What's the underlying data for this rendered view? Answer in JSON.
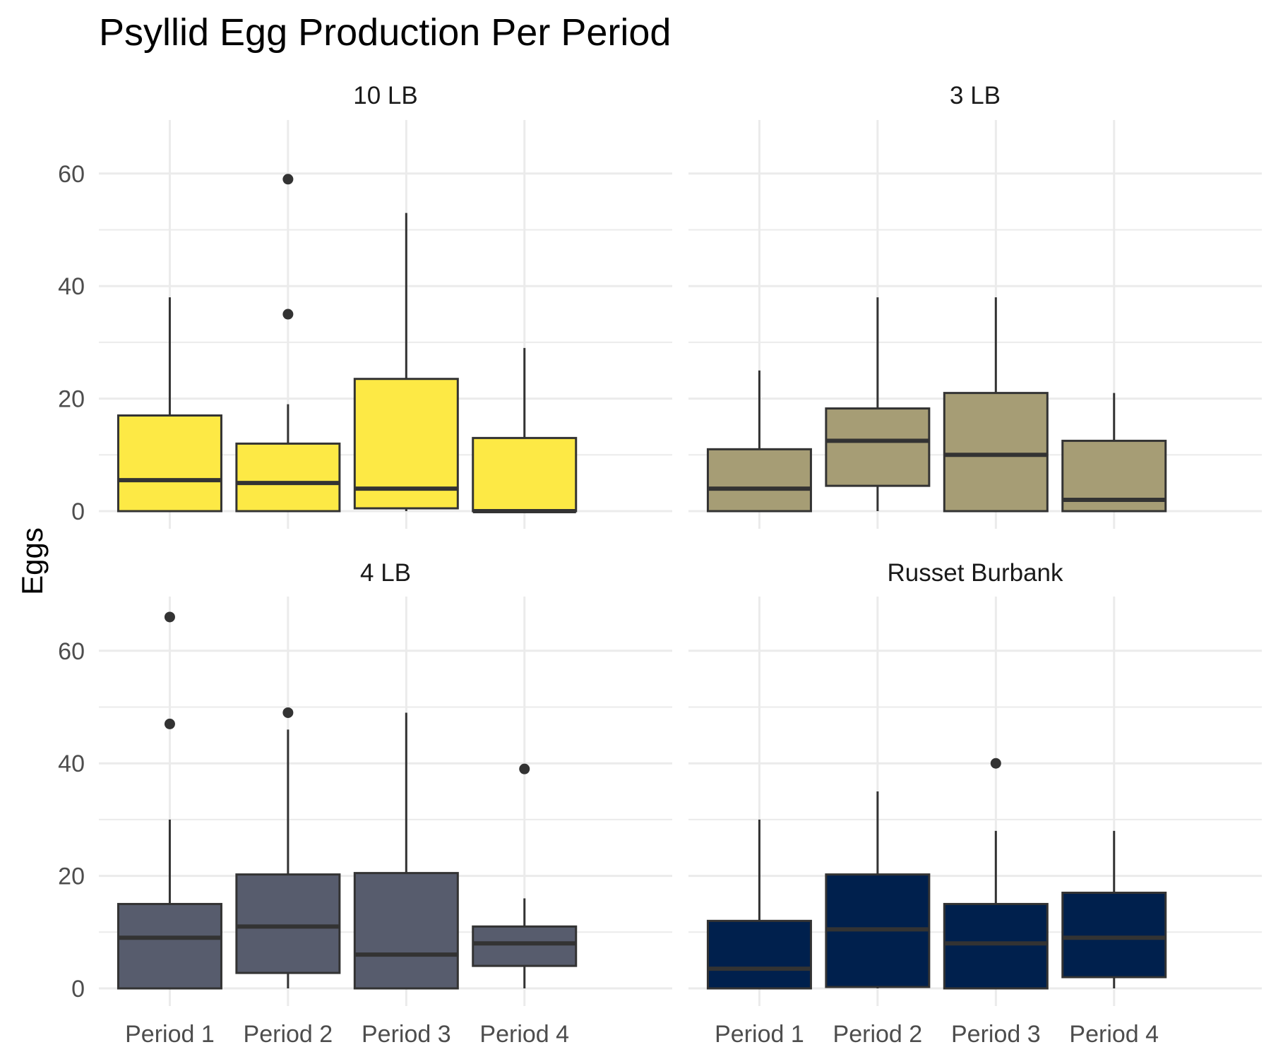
{
  "chart_data": {
    "type": "boxplot",
    "title": "Psyllid Egg Production Per Period",
    "xlabel": "",
    "ylabel": "Eggs",
    "ylim": [
      0,
      70
    ],
    "y_ticks": [
      "0",
      "20",
      "40",
      "60"
    ],
    "categories": [
      "Period 1",
      "Period 2",
      "Period 3",
      "Period 4"
    ],
    "grid": true,
    "legend": "none",
    "panels": [
      {
        "name": "10 LB",
        "color": "#FDE945",
        "boxes": [
          {
            "category": "Period 1",
            "lower": 0,
            "q1": 0,
            "median": 5.5,
            "q3": 17,
            "upper": 38,
            "outliers": []
          },
          {
            "category": "Period 2",
            "lower": 0,
            "q1": 0,
            "median": 5,
            "q3": 12,
            "upper": 19,
            "outliers": [
              35,
              59
            ]
          },
          {
            "category": "Period 3",
            "lower": 0,
            "q1": 0.5,
            "median": 4,
            "q3": 23.5,
            "upper": 53,
            "outliers": []
          },
          {
            "category": "Period 4",
            "lower": 0,
            "q1": 0,
            "median": 0,
            "q3": 13,
            "upper": 29,
            "outliers": []
          }
        ]
      },
      {
        "name": "3 LB",
        "color": "#A69D75",
        "boxes": [
          {
            "category": "Period 1",
            "lower": 0,
            "q1": 0,
            "median": 4,
            "q3": 11,
            "upper": 25,
            "outliers": []
          },
          {
            "category": "Period 2",
            "lower": 0,
            "q1": 4.5,
            "median": 12.5,
            "q3": 18.25,
            "upper": 38,
            "outliers": []
          },
          {
            "category": "Period 3",
            "lower": 0,
            "q1": 0,
            "median": 10,
            "q3": 21,
            "upper": 38,
            "outliers": []
          },
          {
            "category": "Period 4",
            "lower": 0,
            "q1": 0,
            "median": 2,
            "q3": 12.5,
            "upper": 21,
            "outliers": []
          }
        ]
      },
      {
        "name": "4 LB",
        "color": "#575C6D",
        "boxes": [
          {
            "category": "Period 1",
            "lower": 0,
            "q1": 0,
            "median": 9,
            "q3": 15,
            "upper": 30,
            "outliers": [
              47,
              66
            ]
          },
          {
            "category": "Period 2",
            "lower": 0,
            "q1": 2.75,
            "median": 11,
            "q3": 20.25,
            "upper": 46,
            "outliers": [
              49
            ]
          },
          {
            "category": "Period 3",
            "lower": 0,
            "q1": 0,
            "median": 6,
            "q3": 20.5,
            "upper": 49,
            "outliers": []
          },
          {
            "category": "Period 4",
            "lower": 0,
            "q1": 4,
            "median": 8,
            "q3": 11,
            "upper": 16,
            "outliers": [
              39
            ]
          }
        ]
      },
      {
        "name": "Russet Burbank",
        "color": "#00204D",
        "boxes": [
          {
            "category": "Period 1",
            "lower": 0,
            "q1": 0,
            "median": 3.5,
            "q3": 12,
            "upper": 30,
            "outliers": []
          },
          {
            "category": "Period 2",
            "lower": 0,
            "q1": 0.25,
            "median": 10.5,
            "q3": 20.25,
            "upper": 35,
            "outliers": []
          },
          {
            "category": "Period 3",
            "lower": 0,
            "q1": 0,
            "median": 8,
            "q3": 15,
            "upper": 28,
            "outliers": [
              40
            ]
          },
          {
            "category": "Period 4",
            "lower": 0,
            "q1": 2,
            "median": 9,
            "q3": 17,
            "upper": 28,
            "outliers": []
          }
        ]
      }
    ]
  }
}
